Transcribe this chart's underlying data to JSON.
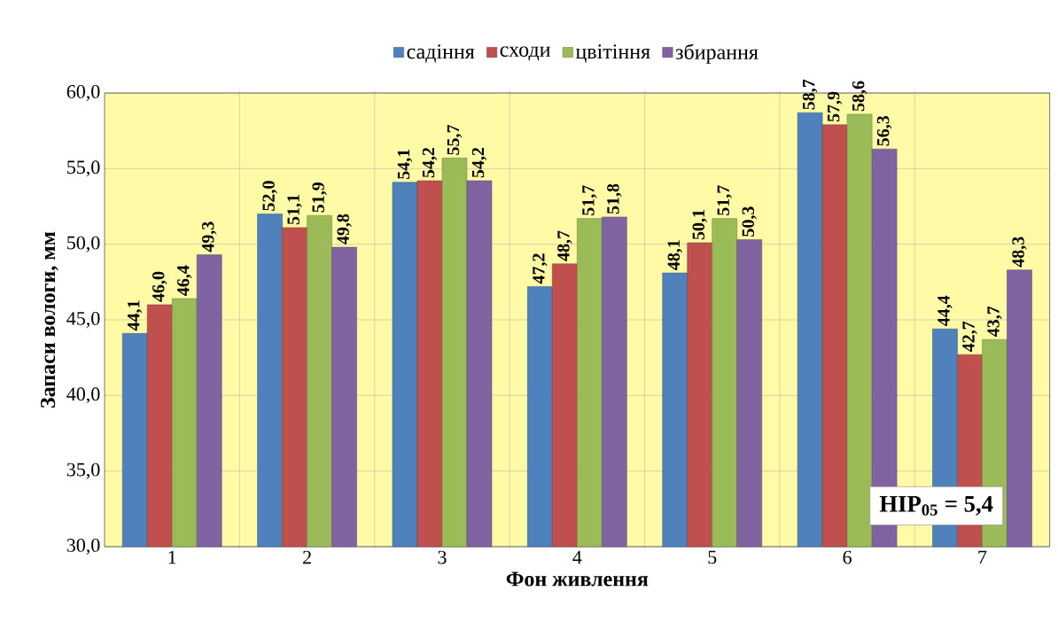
{
  "chart_data": {
    "type": "bar",
    "xlabel": "Фон живлення",
    "ylabel": "Запаси вологи, мм",
    "categories": [
      "1",
      "2",
      "3",
      "4",
      "5",
      "6",
      "7"
    ],
    "series": [
      {
        "name": "садіння",
        "color": "#4f81bd",
        "values": [
          44.1,
          52.0,
          54.1,
          47.2,
          48.1,
          58.7,
          44.4
        ],
        "value_labels": [
          "44,1",
          "52,0",
          "54,1",
          "47,2",
          "48,1",
          "58,7",
          "44,4"
        ]
      },
      {
        "name": "сходи",
        "color": "#c0504d",
        "values": [
          46.0,
          51.1,
          54.2,
          48.7,
          50.1,
          57.9,
          42.7
        ],
        "value_labels": [
          "46,0",
          "51,1",
          "54,2",
          "48,7",
          "50,1",
          "57,9",
          "42,7"
        ]
      },
      {
        "name": "цвітіння",
        "color": "#9bbb59",
        "values": [
          46.4,
          51.9,
          55.7,
          51.7,
          51.7,
          58.6,
          43.7
        ],
        "value_labels": [
          "46,4",
          "51,9",
          "55,7",
          "51,7",
          "51,7",
          "58,6",
          "43,7"
        ]
      },
      {
        "name": "збирання",
        "color": "#8064a2",
        "values": [
          49.3,
          49.8,
          54.2,
          51.8,
          50.3,
          56.3,
          48.3
        ],
        "value_labels": [
          "49,3",
          "49,8",
          "54,2",
          "51,8",
          "50,3",
          "56,3",
          "48,3"
        ]
      }
    ],
    "ylim": [
      30,
      60
    ],
    "yticks": [
      {
        "value": 30,
        "label": "30,0"
      },
      {
        "value": 35,
        "label": "35,0"
      },
      {
        "value": 40,
        "label": "40,0"
      },
      {
        "value": 45,
        "label": "45,0"
      },
      {
        "value": 50,
        "label": "50,0"
      },
      {
        "value": 55,
        "label": "55,0"
      },
      {
        "value": 60,
        "label": "60,0"
      }
    ],
    "grid": true,
    "legend": "top",
    "annotations": [
      "НІР$_{05}$ = 5,4"
    ]
  }
}
